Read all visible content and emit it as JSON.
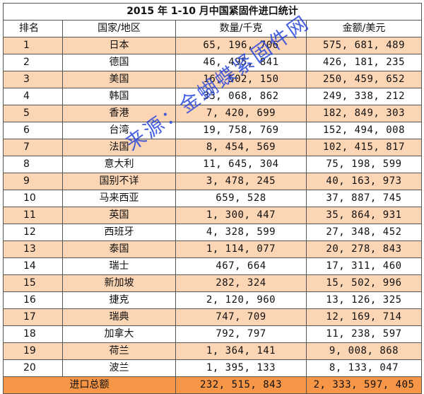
{
  "title": "2015 年 1-10 月中国紧固件进口统计",
  "headers": {
    "rank": "排名",
    "country": "国家/地区",
    "quantity": "数量/千克",
    "amount": "金额/美元"
  },
  "rows": [
    {
      "rank": "1",
      "country": "日本",
      "quantity": "65, 196, 706",
      "amount": "575, 681, 489"
    },
    {
      "rank": "2",
      "country": "德国",
      "quantity": "46, 495, 841",
      "amount": "426, 181, 235"
    },
    {
      "rank": "3",
      "country": "美国",
      "quantity": "16, 502, 150",
      "amount": "250, 459, 652"
    },
    {
      "rank": "4",
      "country": "韩国",
      "quantity": "33, 068, 862",
      "amount": "249, 338, 212"
    },
    {
      "rank": "5",
      "country": "香港",
      "quantity": "7, 420, 699",
      "amount": "182, 849, 303"
    },
    {
      "rank": "6",
      "country": "台湾",
      "quantity": "19, 758, 769",
      "amount": "152, 494, 008"
    },
    {
      "rank": "7",
      "country": "法国",
      "quantity": "8, 454, 569",
      "amount": "102, 415, 817"
    },
    {
      "rank": "8",
      "country": "意大利",
      "quantity": "11, 645, 304",
      "amount": "75, 198, 599"
    },
    {
      "rank": "9",
      "country": "国别不详",
      "quantity": "3, 478, 245",
      "amount": "40, 163, 973"
    },
    {
      "rank": "10",
      "country": "马来西亚",
      "quantity": "659, 528",
      "amount": "37, 887, 745"
    },
    {
      "rank": "11",
      "country": "英国",
      "quantity": "1, 300, 447",
      "amount": "35, 864, 931"
    },
    {
      "rank": "12",
      "country": "西班牙",
      "quantity": "4, 328, 599",
      "amount": "27, 348, 452"
    },
    {
      "rank": "13",
      "country": "泰国",
      "quantity": "1, 114, 077",
      "amount": "20, 278, 843"
    },
    {
      "rank": "14",
      "country": "瑞士",
      "quantity": "467, 664",
      "amount": "17, 311, 460"
    },
    {
      "rank": "15",
      "country": "新加坡",
      "quantity": "282, 324",
      "amount": "15, 502, 996"
    },
    {
      "rank": "16",
      "country": "捷克",
      "quantity": "2, 120, 960",
      "amount": "13, 126, 325"
    },
    {
      "rank": "17",
      "country": "瑞典",
      "quantity": "747, 709",
      "amount": "12, 169, 714"
    },
    {
      "rank": "18",
      "country": "加拿大",
      "quantity": "792, 797",
      "amount": "11, 238, 597"
    },
    {
      "rank": "19",
      "country": "荷兰",
      "quantity": "1, 364, 141",
      "amount": "9, 008, 868"
    },
    {
      "rank": "20",
      "country": "波兰",
      "quantity": "1, 395, 133",
      "amount": "8, 133, 047"
    }
  ],
  "total": {
    "label": "进口总额",
    "quantity": "232, 515, 843",
    "amount": "2, 333, 597, 405"
  },
  "watermark": "来源：金蝴蝶紧固件网",
  "colors": {
    "odd_row": "#fcd5b4",
    "total_row": "#f79646",
    "watermark": "#2846dc"
  }
}
